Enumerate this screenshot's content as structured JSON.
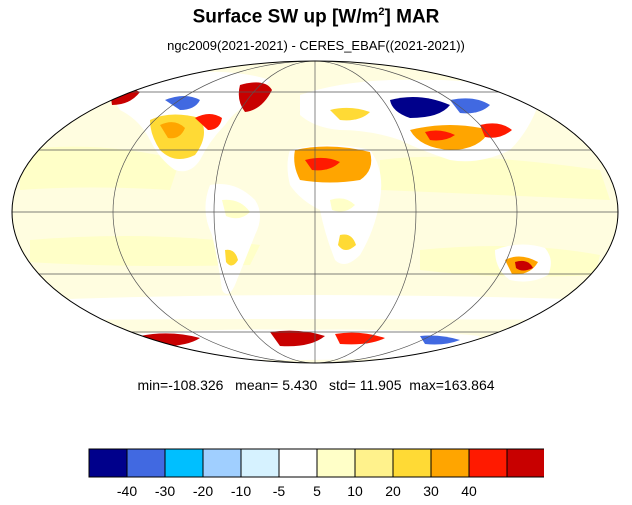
{
  "title_prefix": "Surface SW up [W/m",
  "title_sup": "2",
  "title_suffix": "]  MAR",
  "subtitle": "ngc2009(2021-2021) - CERES_EBAF((2021-2021))",
  "stats": {
    "min_label": "min=",
    "min": "-108.326",
    "mean_label": "mean=",
    "mean": " 5.430",
    "std_label": "std=",
    "std": " 11.905",
    "max_label": "max=",
    "max": "163.864"
  },
  "colorbar": {
    "colors": [
      "#00008b",
      "#4169e1",
      "#00bfff",
      "#a0cfff",
      "#d6f2ff",
      "#ffffff",
      "#ffffc8",
      "#fff28c",
      "#ffda35",
      "#ffa500",
      "#ff1a00",
      "#c80000"
    ],
    "labels": [
      "-40",
      "-30",
      "-20",
      "-10",
      "-5",
      "5",
      "10",
      "20",
      "30",
      "40"
    ]
  },
  "map": {
    "projection": "Mollweide",
    "ocean_color": "#fffde0",
    "land_color": "#ffffff"
  }
}
